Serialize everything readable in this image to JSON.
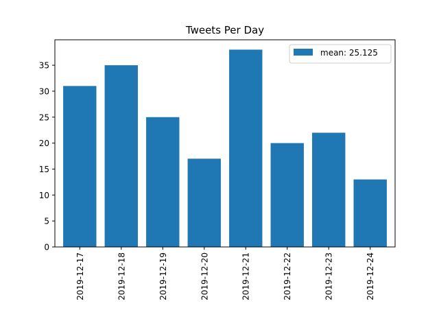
{
  "chart_data": {
    "type": "bar",
    "title": "Tweets Per Day",
    "xlabel": "",
    "ylabel": "",
    "categories": [
      "2019-12-17",
      "2019-12-18",
      "2019-12-19",
      "2019-12-20",
      "2019-12-21",
      "2019-12-22",
      "2019-12-23",
      "2019-12-24"
    ],
    "values": [
      31,
      35,
      25,
      17,
      38,
      20,
      22,
      13
    ],
    "ylim": [
      0,
      39.9
    ],
    "yticks": [
      0,
      5,
      10,
      15,
      20,
      25,
      30,
      35
    ],
    "grid": false,
    "legend": {
      "placement": "top-right",
      "entries": [
        {
          "label": "mean: 25.125",
          "color": "#1f77b4"
        }
      ]
    },
    "colors": {
      "bar": "#1f77b4",
      "axes": "#000000",
      "background": "#ffffff"
    }
  }
}
